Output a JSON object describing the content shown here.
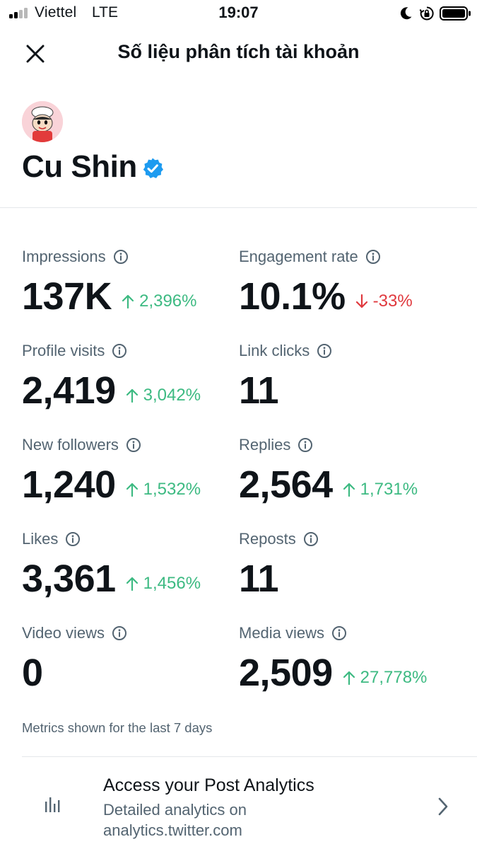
{
  "status_bar": {
    "carrier": "Viettel",
    "network": "LTE",
    "time": "19:07",
    "icons": [
      "signal-icon",
      "moon-icon",
      "rotation-lock-icon",
      "battery-icon"
    ]
  },
  "header": {
    "title": "Số liệu phân tích tài khoản",
    "close_icon": "close-icon"
  },
  "profile": {
    "name": "Cu Shin",
    "verified": true,
    "avatar_icon": "avatar-cartoon"
  },
  "metrics": [
    {
      "label": "Impressions",
      "value": "137K",
      "change": "2,396%",
      "direction": "up"
    },
    {
      "label": "Engagement rate",
      "value": "10.1%",
      "change": "-33%",
      "direction": "down"
    },
    {
      "label": "Profile visits",
      "value": "2,419",
      "change": "3,042%",
      "direction": "up"
    },
    {
      "label": "Link clicks",
      "value": "11",
      "change": "",
      "direction": "none"
    },
    {
      "label": "New followers",
      "value": "1,240",
      "change": "1,532%",
      "direction": "up"
    },
    {
      "label": "Replies",
      "value": "2,564",
      "change": "1,731%",
      "direction": "up"
    },
    {
      "label": "Likes",
      "value": "3,361",
      "change": "1,456%",
      "direction": "up"
    },
    {
      "label": "Reposts",
      "value": "11",
      "change": "",
      "direction": "none"
    },
    {
      "label": "Video views",
      "value": "0",
      "change": "",
      "direction": "none"
    },
    {
      "label": "Media views",
      "value": "2,509",
      "change": "27,778%",
      "direction": "up"
    }
  ],
  "metrics_note": "Metrics shown for the last 7 days",
  "post_analytics": {
    "title": "Access your Post Analytics",
    "subtitle_line1": "Detailed analytics on",
    "subtitle_line2": "analytics.twitter.com",
    "icon": "bar-chart-icon",
    "chevron": "chevron-right-icon"
  },
  "colors": {
    "text": "#0f1419",
    "secondary": "#536471",
    "positive": "#3dba82",
    "negative": "#e0393e",
    "verified": "#1d9bf0"
  }
}
